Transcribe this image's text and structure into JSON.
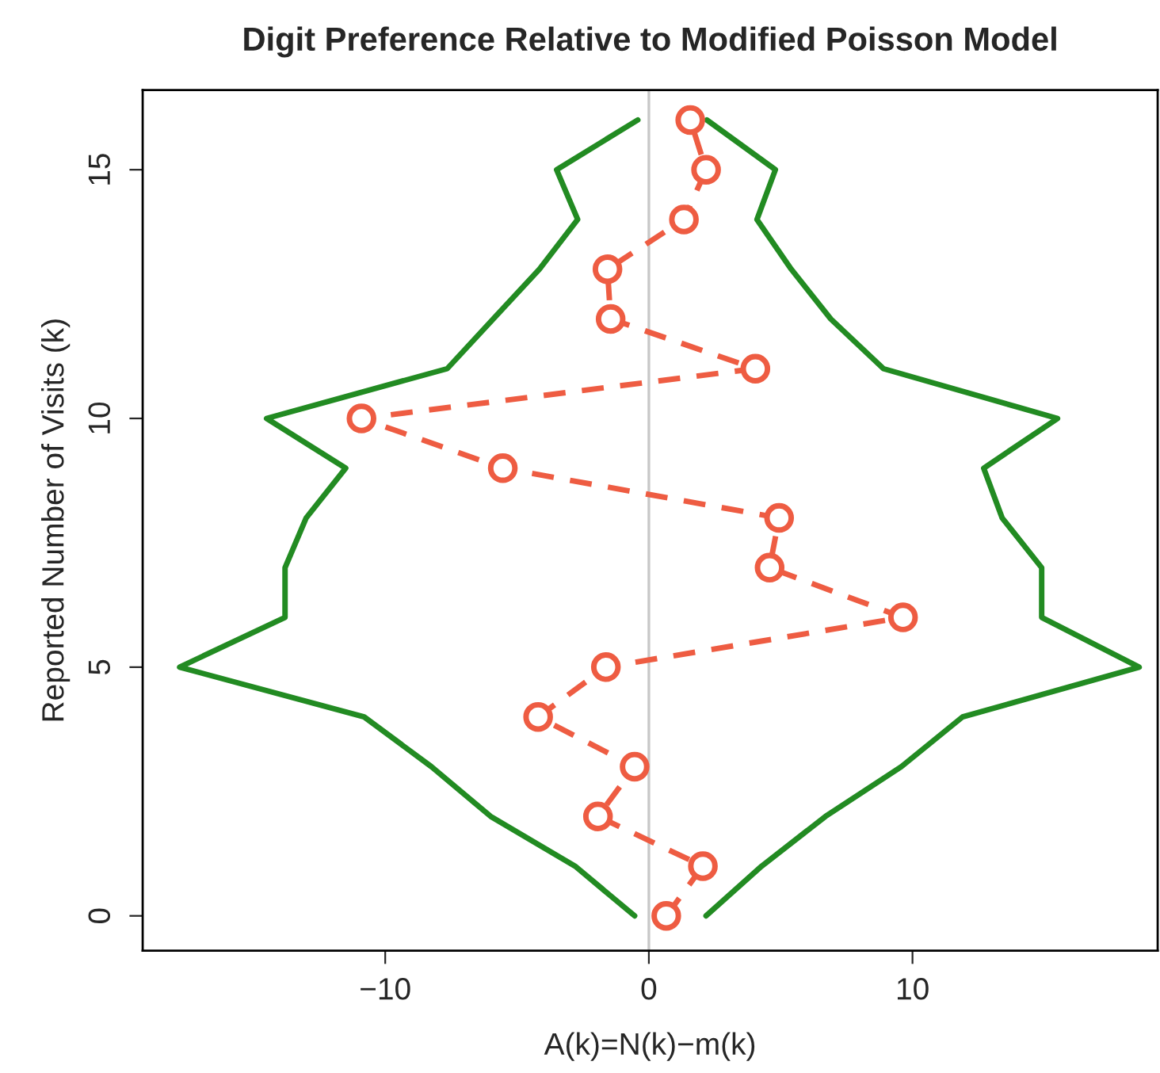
{
  "chart_data": {
    "type": "line",
    "title": "Digit Preference Relative to Modified Poisson Model",
    "xlabel": "A(k)=N(k)−m(k)",
    "ylabel": "Reported Number of Visits (k)",
    "series": [
      {
        "color": "#228b22",
        "marker": "none",
        "line_style": "solid",
        "x": [
          -0.54,
          -2.8,
          -6.0,
          -8.25,
          -10.8,
          -17.8,
          -13.8,
          -13.8,
          -13.0,
          -11.5,
          -14.5,
          -7.65,
          -5.9,
          -4.15,
          -2.7,
          -3.5,
          -0.42
        ],
        "values": [
          0,
          1,
          2,
          3,
          4,
          5,
          6,
          7,
          8,
          9,
          10,
          11,
          12,
          13,
          14,
          15,
          16
        ]
      },
      {
        "color": "#228b22",
        "marker": "none",
        "line_style": "solid",
        "x": [
          2.17,
          4.28,
          6.7,
          9.58,
          11.9,
          18.6,
          14.9,
          14.9,
          13.4,
          12.7,
          15.5,
          8.9,
          6.9,
          5.4,
          4.1,
          4.8,
          2.2
        ],
        "values": [
          0,
          1,
          2,
          3,
          4,
          5,
          6,
          7,
          8,
          9,
          10,
          11,
          12,
          13,
          14,
          15,
          16
        ]
      },
      {
        "color": "#ee5c42",
        "marker": "circle",
        "line_style": "dashed",
        "x": [
          0.66,
          2.05,
          -1.93,
          -0.54,
          -4.2,
          -1.63,
          9.64,
          4.58,
          4.94,
          -5.54,
          -10.9,
          4.04,
          -1.45,
          -1.57,
          1.33,
          2.17,
          1.57
        ],
        "values": [
          0,
          1,
          2,
          3,
          4,
          5,
          6,
          7,
          8,
          9,
          10,
          11,
          12,
          13,
          14,
          15,
          16
        ]
      }
    ],
    "ref_lines": [
      {
        "axis": "x",
        "value": 0,
        "color": "#c8c8c8"
      }
    ],
    "xlim": [
      -19.2,
      19.3
    ],
    "xticks": [
      -10,
      0,
      10
    ],
    "ylim": [
      -0.7,
      16.6
    ],
    "yticks": [
      0,
      5,
      10,
      15
    ],
    "grid": false,
    "legend": false
  }
}
